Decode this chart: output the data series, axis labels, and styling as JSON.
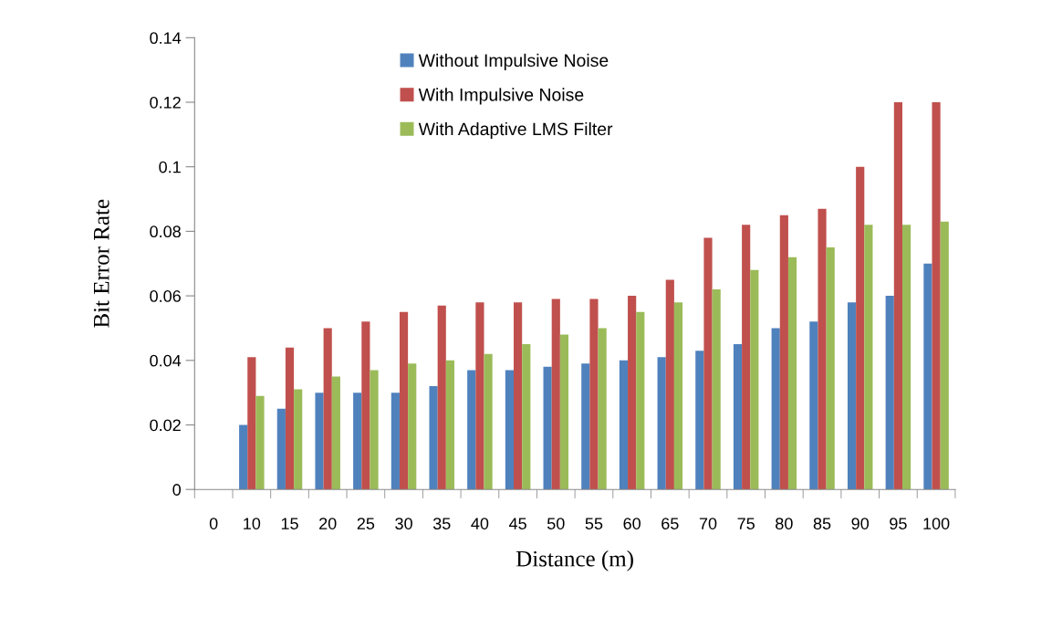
{
  "chart_data": {
    "type": "bar",
    "xlabel": "Distance (m)",
    "ylabel": "Bit Error Rate",
    "categories": [
      "0",
      "10",
      "15",
      "20",
      "25",
      "30",
      "35",
      "40",
      "45",
      "50",
      "55",
      "60",
      "65",
      "70",
      "75",
      "80",
      "85",
      "90",
      "95",
      "100"
    ],
    "series": [
      {
        "name": "Without Impulsive Noise",
        "color": "#4f81bd",
        "values": [
          null,
          0.02,
          0.025,
          0.03,
          0.03,
          0.03,
          0.032,
          0.037,
          0.037,
          0.038,
          0.039,
          0.04,
          0.041,
          0.043,
          0.045,
          0.05,
          0.052,
          0.058,
          0.06,
          0.07
        ]
      },
      {
        "name": "With Impulsive Noise",
        "color": "#c0504d",
        "values": [
          null,
          0.041,
          0.044,
          0.05,
          0.052,
          0.055,
          0.057,
          0.058,
          0.058,
          0.059,
          0.059,
          0.06,
          0.065,
          0.078,
          0.082,
          0.085,
          0.087,
          0.1,
          0.12,
          0.12
        ]
      },
      {
        "name": "With Adaptive LMS Filter",
        "color": "#9bbb59",
        "values": [
          null,
          0.029,
          0.031,
          0.035,
          0.037,
          0.039,
          0.04,
          0.042,
          0.045,
          0.048,
          0.05,
          0.055,
          0.058,
          0.062,
          0.068,
          0.072,
          0.075,
          0.082,
          0.082,
          0.083
        ]
      }
    ],
    "ylim": [
      0,
      0.14
    ],
    "yticks": [
      {
        "value": 0,
        "label": "0"
      },
      0.02,
      0.04,
      0.06,
      0.08,
      0.1,
      0.12,
      0.14
    ],
    "grid": false,
    "legend": "top"
  }
}
